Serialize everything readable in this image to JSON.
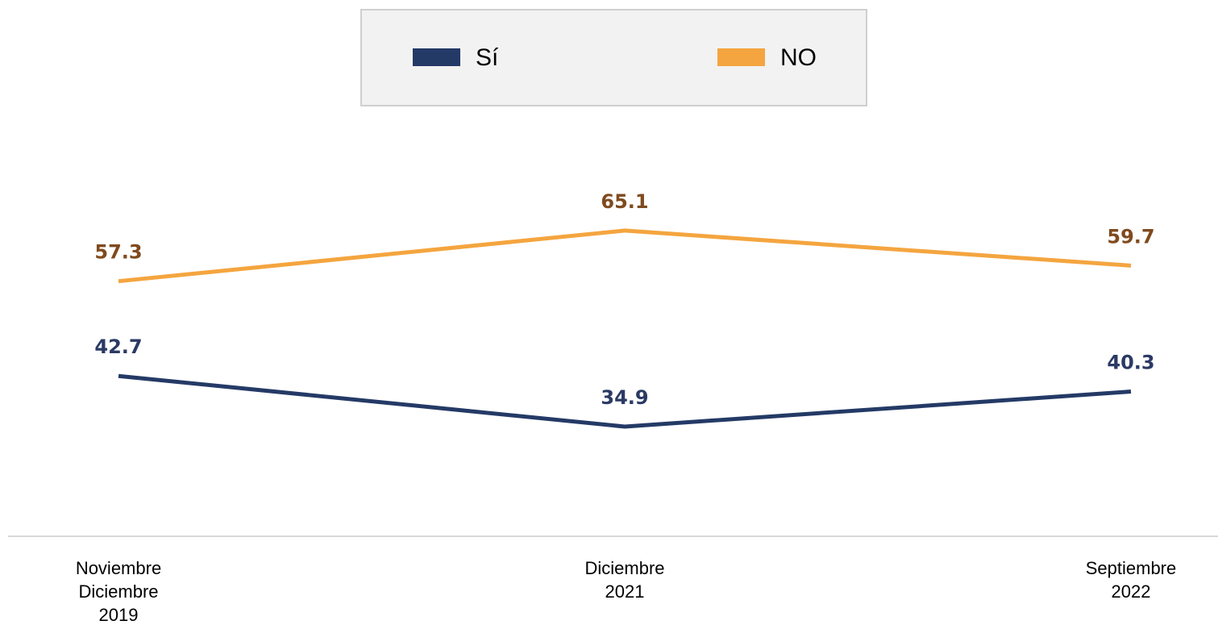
{
  "chart_data": {
    "type": "line",
    "categories": [
      "Noviembre\nDiciembre\n2019",
      "Diciembre\n2021",
      "Septiembre\n2022"
    ],
    "series": [
      {
        "name": "Sí",
        "color": "#243a66",
        "label_color": "#2b3a64",
        "values": [
          42.7,
          34.9,
          40.3
        ]
      },
      {
        "name": "NO",
        "color": "#f4a53f",
        "label_color": "#7f4a1e",
        "values": [
          57.3,
          65.1,
          59.7
        ]
      }
    ],
    "ylim": [
      18,
      80
    ],
    "legend": "top",
    "grid": false
  }
}
